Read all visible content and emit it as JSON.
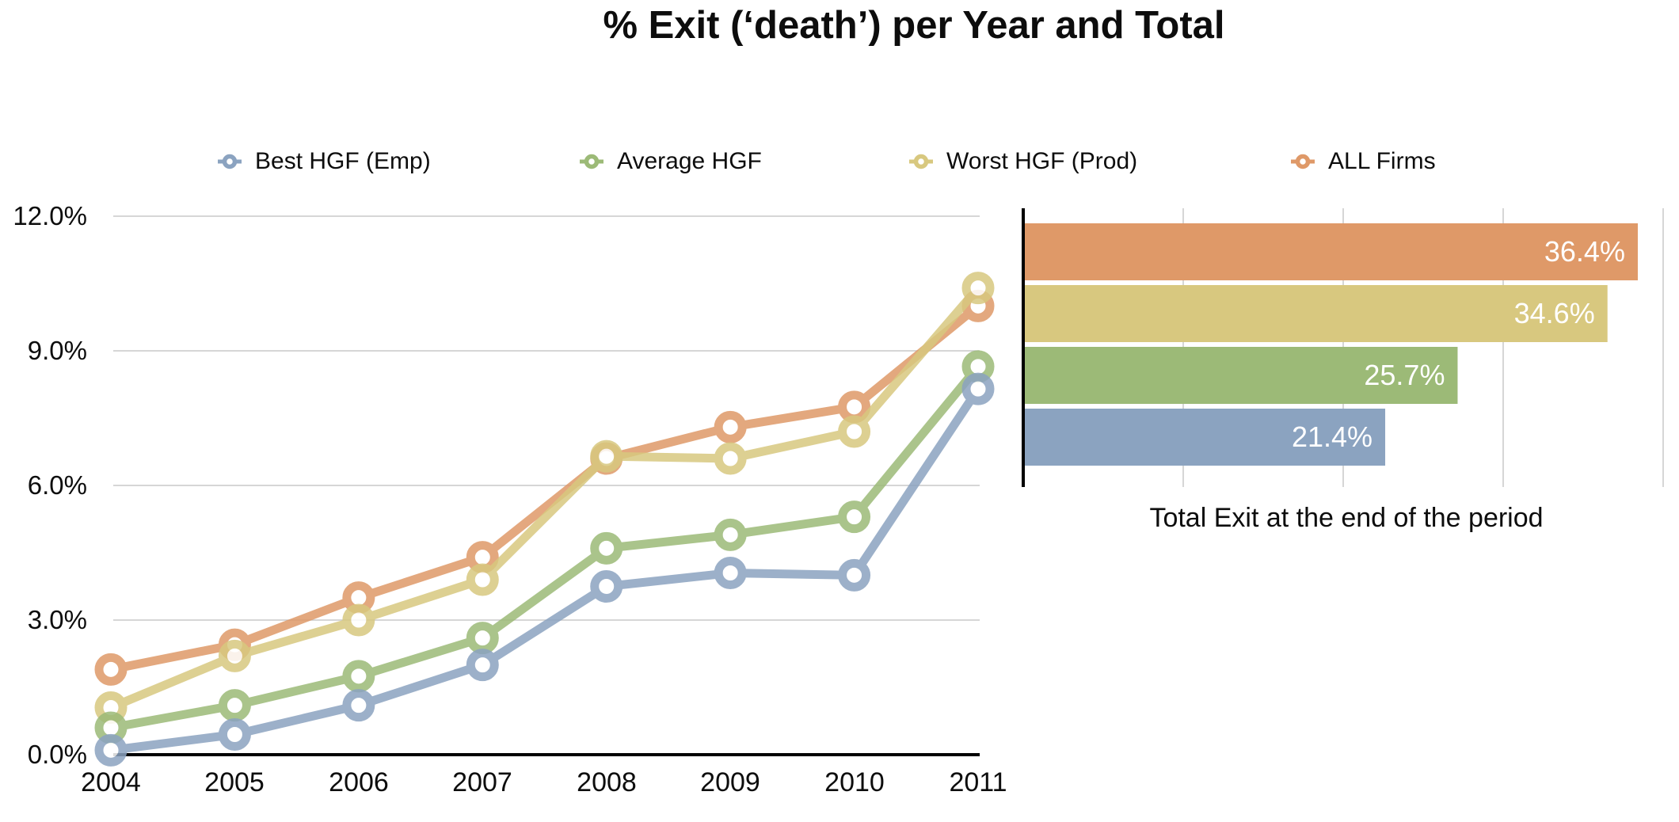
{
  "title": "% Exit (‘death’) per Year and Total",
  "colors": {
    "best_hgf_emp": "#8BA3C0",
    "average_hgf": "#9CBA77",
    "worst_hgf_prod": "#D8C87F",
    "all_firms": "#DF9968",
    "grid": "#c8c8c8",
    "axis": "#000000"
  },
  "legend": {
    "items": [
      {
        "label": "Best HGF (Emp)",
        "color": "#8BA3C0"
      },
      {
        "label": "Average HGF",
        "color": "#9CBA77"
      },
      {
        "label": "Worst HGF (Prod)",
        "color": "#D8C87F"
      },
      {
        "label": "ALL Firms",
        "color": "#DF9968"
      }
    ]
  },
  "chart_data": [
    {
      "type": "line",
      "title": "% Exit per Year",
      "x": [
        2004,
        2005,
        2006,
        2007,
        2008,
        2009,
        2010,
        2011
      ],
      "series": [
        {
          "name": "ALL Firms",
          "color": "#DF9968",
          "values": [
            1.9,
            2.45,
            3.5,
            4.4,
            6.6,
            7.3,
            7.75,
            10.0
          ]
        },
        {
          "name": "Worst HGF (Prod)",
          "color": "#D8C87F",
          "values": [
            1.05,
            2.2,
            3.0,
            3.9,
            6.65,
            6.6,
            7.2,
            10.4
          ]
        },
        {
          "name": "Average HGF",
          "color": "#9CBA77",
          "values": [
            0.6,
            1.1,
            1.75,
            2.6,
            4.6,
            4.9,
            5.3,
            8.65
          ]
        },
        {
          "name": "Best HGF (Emp)",
          "color": "#8BA3C0",
          "values": [
            0.1,
            0.45,
            1.1,
            2.0,
            3.75,
            4.05,
            4.0,
            8.15
          ]
        }
      ],
      "y_tick_labels": [
        "12.0%",
        "9.0%",
        "6.0%",
        "3.0%",
        "0.0%"
      ],
      "ylim": [
        0,
        12
      ],
      "grid": "horizontal",
      "legend_position": "top"
    },
    {
      "type": "bar",
      "orientation": "horizontal",
      "categories": [
        "ALL Firms",
        "Worst HGF (Prod)",
        "Average HGF",
        "Best HGF (Emp)"
      ],
      "values": [
        36.4,
        34.6,
        25.7,
        21.4
      ],
      "labels": [
        "36.4%",
        "34.6%",
        "25.7%",
        "21.4%"
      ],
      "colors": [
        "#DF9968",
        "#D8C87F",
        "#9CBA77",
        "#8BA3C0"
      ],
      "xlim": [
        0,
        38
      ],
      "grid": "vertical",
      "caption": "Total Exit at the end of the period"
    }
  ]
}
